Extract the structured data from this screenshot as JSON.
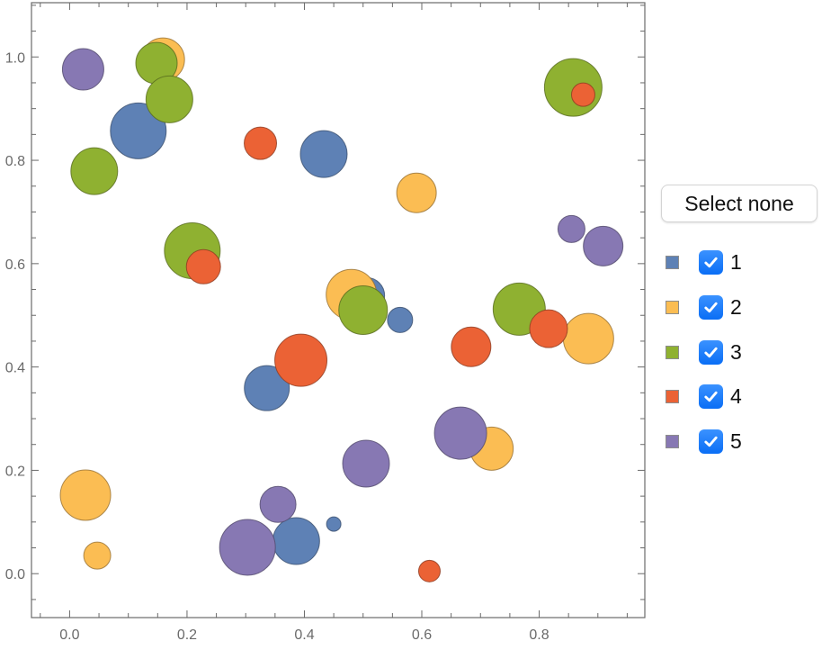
{
  "chart_data": {
    "type": "bubble",
    "title": "",
    "xlabel": "",
    "ylabel": "",
    "xlim": [
      -0.065,
      0.98
    ],
    "ylim": [
      -0.085,
      1.105
    ],
    "grid": false,
    "frame": true,
    "x_ticks": [
      0.0,
      0.2,
      0.4,
      0.6,
      0.8
    ],
    "x_tick_labels": [
      "0.0",
      "0.2",
      "0.4",
      "0.6",
      "0.8"
    ],
    "y_ticks": [
      0.0,
      0.2,
      0.4,
      0.6,
      0.8,
      1.0
    ],
    "y_tick_labels": [
      "0.0",
      "0.2",
      "0.4",
      "0.6",
      "0.8",
      "1.0"
    ],
    "legend_position": "right",
    "series": [
      {
        "name": "1",
        "color": "#5E81B5",
        "points": [
          {
            "x": 0.117,
            "y": 0.857,
            "size": 31
          },
          {
            "x": 0.433,
            "y": 0.812,
            "size": 26
          },
          {
            "x": 0.506,
            "y": 0.538,
            "size": 20
          },
          {
            "x": 0.563,
            "y": 0.491,
            "size": 14
          },
          {
            "x": 0.336,
            "y": 0.359,
            "size": 25
          },
          {
            "x": 0.386,
            "y": 0.063,
            "size": 26
          },
          {
            "x": 0.45,
            "y": 0.096,
            "size": 8
          }
        ]
      },
      {
        "name": "2",
        "color": "#FBBD53",
        "points": [
          {
            "x": 0.159,
            "y": 0.995,
            "size": 24
          },
          {
            "x": 0.591,
            "y": 0.737,
            "size": 22
          },
          {
            "x": 0.48,
            "y": 0.54,
            "size": 28
          },
          {
            "x": 0.884,
            "y": 0.455,
            "size": 28
          },
          {
            "x": 0.719,
            "y": 0.242,
            "size": 24
          },
          {
            "x": 0.027,
            "y": 0.152,
            "size": 28
          },
          {
            "x": 0.047,
            "y": 0.035,
            "size": 15
          }
        ]
      },
      {
        "name": "3",
        "color": "#8FB131",
        "points": [
          {
            "x": 0.148,
            "y": 0.988,
            "size": 23
          },
          {
            "x": 0.17,
            "y": 0.918,
            "size": 26
          },
          {
            "x": 0.042,
            "y": 0.779,
            "size": 26
          },
          {
            "x": 0.209,
            "y": 0.625,
            "size": 31
          },
          {
            "x": 0.5,
            "y": 0.51,
            "size": 27
          },
          {
            "x": 0.766,
            "y": 0.512,
            "size": 29
          },
          {
            "x": 0.858,
            "y": 0.941,
            "size": 32
          }
        ]
      },
      {
        "name": "4",
        "color": "#EB6235",
        "points": [
          {
            "x": 0.325,
            "y": 0.833,
            "size": 18
          },
          {
            "x": 0.228,
            "y": 0.594,
            "size": 19
          },
          {
            "x": 0.394,
            "y": 0.413,
            "size": 29
          },
          {
            "x": 0.684,
            "y": 0.439,
            "size": 22
          },
          {
            "x": 0.816,
            "y": 0.474,
            "size": 21
          },
          {
            "x": 0.875,
            "y": 0.927,
            "size": 13
          },
          {
            "x": 0.613,
            "y": 0.005,
            "size": 12
          }
        ]
      },
      {
        "name": "5",
        "color": "#8778B3",
        "points": [
          {
            "x": 0.023,
            "y": 0.976,
            "size": 23
          },
          {
            "x": 0.855,
            "y": 0.667,
            "size": 15
          },
          {
            "x": 0.909,
            "y": 0.634,
            "size": 22
          },
          {
            "x": 0.666,
            "y": 0.272,
            "size": 29
          },
          {
            "x": 0.505,
            "y": 0.213,
            "size": 26
          },
          {
            "x": 0.355,
            "y": 0.134,
            "size": 20
          },
          {
            "x": 0.303,
            "y": 0.051,
            "size": 31
          }
        ]
      }
    ]
  },
  "legend": {
    "select_none_label": "Select none",
    "items": [
      {
        "label": "1",
        "color": "#5E81B5",
        "checked": true
      },
      {
        "label": "2",
        "color": "#FBBD53",
        "checked": true
      },
      {
        "label": "3",
        "color": "#8FB131",
        "checked": true
      },
      {
        "label": "4",
        "color": "#EB6235",
        "checked": true
      },
      {
        "label": "5",
        "color": "#8778B3",
        "checked": true
      }
    ]
  }
}
